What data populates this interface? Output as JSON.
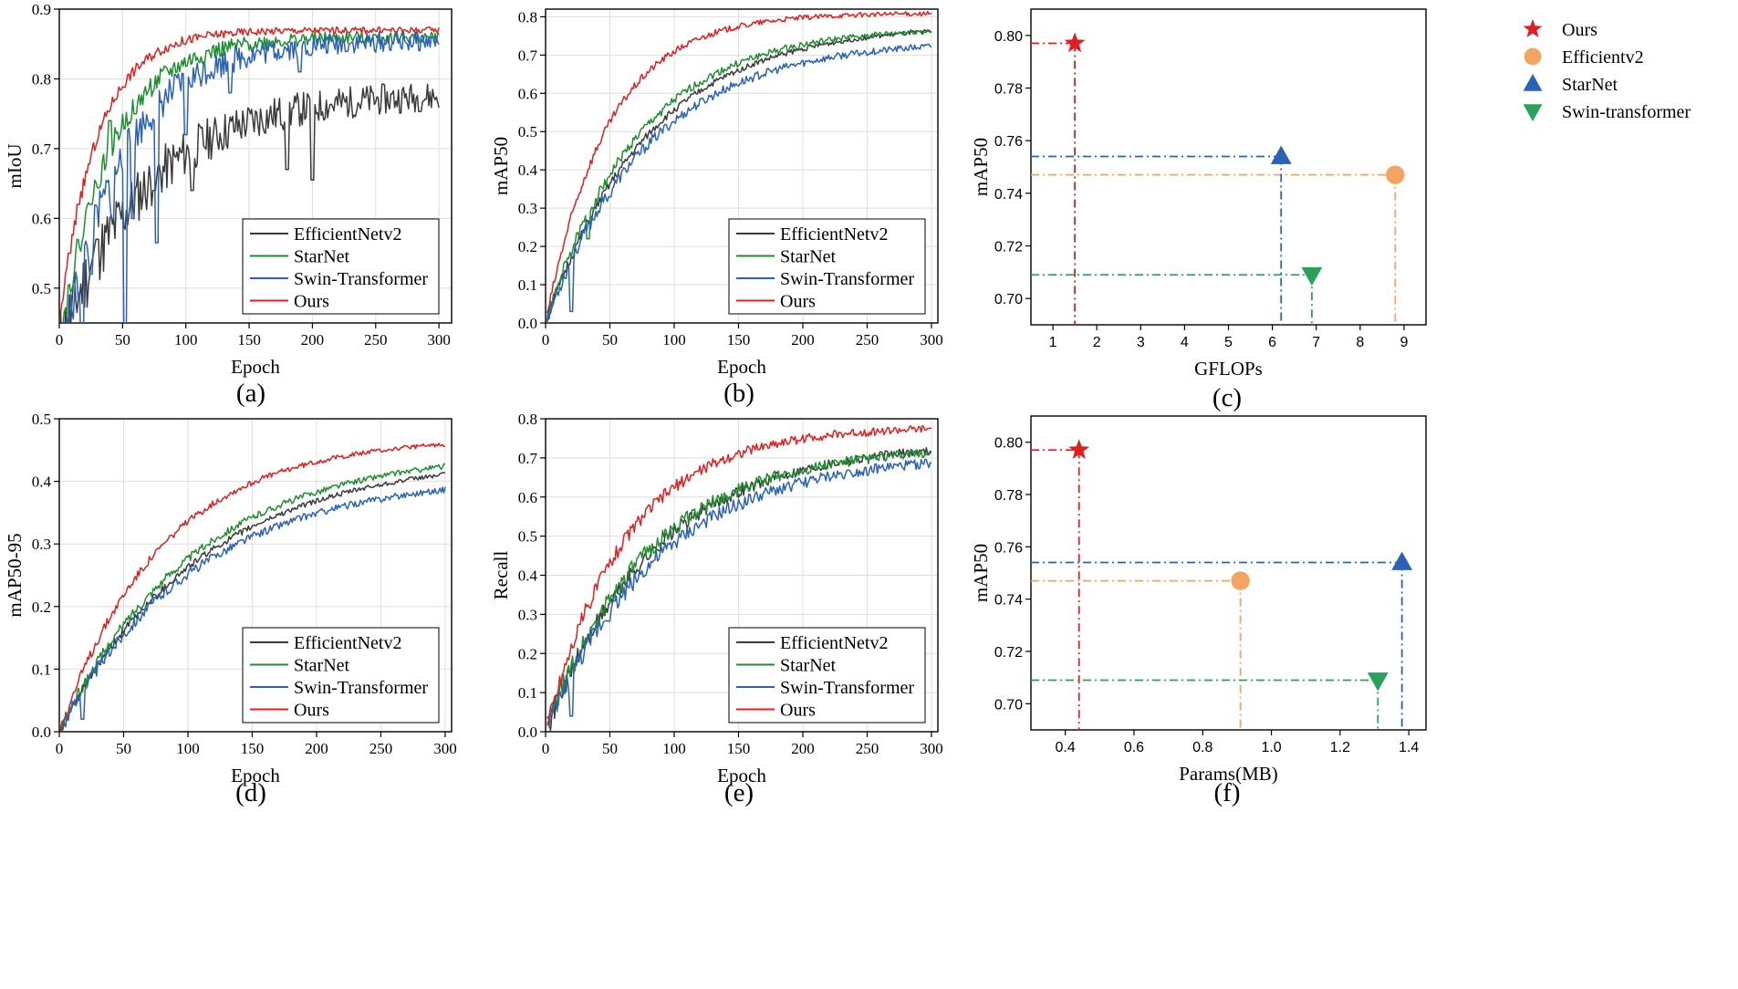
{
  "figure": {
    "panel_labels": [
      "(a)",
      "(b)",
      "(c)",
      "(d)",
      "(e)",
      "(f)"
    ]
  },
  "chart_data": [
    {
      "id": "a",
      "type": "line",
      "xlabel": "Epoch",
      "ylabel": "mIoU",
      "xlim": [
        0,
        310
      ],
      "ylim": [
        0.45,
        0.9
      ],
      "xticks": [
        0,
        50,
        100,
        150,
        200,
        250,
        300
      ],
      "yticks": [
        0.5,
        0.6,
        0.7,
        0.8,
        0.9
      ],
      "ytick_labels": [
        "0.5",
        "0.6",
        "0.7",
        "0.8",
        "0.9"
      ],
      "grid": true,
      "legend_position": "lower-right",
      "series": [
        {
          "name": "EfficientNetv2",
          "color": "#3a3a3a",
          "start": 0.42,
          "end": 0.78,
          "tau": 70,
          "noise": 0.03,
          "dips": [
            [
              30,
              0.57
            ],
            [
              75,
              0.64
            ],
            [
              105,
              0.64
            ],
            [
              180,
              0.67
            ],
            [
              200,
              0.655
            ]
          ],
          "seed": 11
        },
        {
          "name": "StarNet",
          "color": "#1e8f2e",
          "start": 0.42,
          "end": 0.86,
          "tau": 40,
          "noise": 0.012,
          "dips": [
            [
              25,
              0.62
            ],
            [
              40,
              0.74
            ],
            [
              60,
              0.75
            ]
          ],
          "seed": 22
        },
        {
          "name": "Swin-Transformer",
          "color": "#2a62b8",
          "start": 0.38,
          "end": 0.855,
          "tau": 48,
          "noise": 0.02,
          "dips": [
            [
              18,
              0.42
            ],
            [
              25,
              0.52
            ],
            [
              42,
              0.6
            ],
            [
              52,
              0.45
            ],
            [
              58,
              0.6
            ],
            [
              77,
              0.565
            ],
            [
              100,
              0.72
            ],
            [
              135,
              0.78
            ],
            [
              190,
              0.81
            ]
          ],
          "seed": 33
        },
        {
          "name": "Ours",
          "color": "#e02020",
          "start": 0.45,
          "end": 0.87,
          "tau": 30,
          "noise": 0.006,
          "dips": [
            [
              8,
              0.55
            ],
            [
              15,
              0.62
            ]
          ],
          "seed": 44
        }
      ]
    },
    {
      "id": "b",
      "type": "line",
      "xlabel": "Epoch",
      "ylabel": "mAP50",
      "xlim": [
        0,
        305
      ],
      "ylim": [
        0,
        0.82
      ],
      "xticks": [
        0,
        50,
        100,
        150,
        200,
        250,
        300
      ],
      "yticks": [
        0.0,
        0.1,
        0.2,
        0.3,
        0.4,
        0.5,
        0.6,
        0.7,
        0.8
      ],
      "ytick_labels": [
        "0.0",
        "0.1",
        "0.2",
        "0.3",
        "0.4",
        "0.5",
        "0.6",
        "0.7",
        "0.8"
      ],
      "grid": true,
      "legend_position": "lower-right",
      "series": [
        {
          "name": "EfficientNetv2",
          "color": "#3a3a3a",
          "start": 0.0,
          "end": 0.78,
          "tau": 80,
          "noise": 0.008,
          "dips": [],
          "seed": 51
        },
        {
          "name": "StarNet",
          "color": "#1e8f2e",
          "start": 0.0,
          "end": 0.775,
          "tau": 72,
          "noise": 0.01,
          "dips": [
            [
              33,
              0.22
            ]
          ],
          "seed": 52
        },
        {
          "name": "Swin-Transformer",
          "color": "#2a62b8",
          "start": 0.0,
          "end": 0.74,
          "tau": 80,
          "noise": 0.012,
          "dips": [
            [
              20,
              0.03
            ],
            [
              50,
              0.33
            ]
          ],
          "seed": 53
        },
        {
          "name": "Ours",
          "color": "#e02020",
          "start": 0.0,
          "end": 0.81,
          "tau": 48,
          "noise": 0.008,
          "dips": [],
          "seed": 54
        }
      ]
    },
    {
      "id": "c",
      "type": "scatter",
      "xlabel": "GFLOPs",
      "ylabel": "mAP50",
      "xlim": [
        0.5,
        9.5
      ],
      "ylim": [
        0.69,
        0.81
      ],
      "xticks": [
        1,
        2,
        3,
        4,
        5,
        6,
        7,
        8,
        9
      ],
      "yticks": [
        0.7,
        0.72,
        0.74,
        0.76,
        0.78,
        0.8
      ],
      "ytick_labels": [
        "0.70",
        "0.72",
        "0.74",
        "0.76",
        "0.78",
        "0.80"
      ],
      "legend_position": "top-right",
      "points": [
        {
          "name": "Ours",
          "x": 1.5,
          "y": 0.797,
          "color": "#e02020",
          "marker": "star"
        },
        {
          "name": "Efficientv2",
          "x": 8.8,
          "y": 0.747,
          "color": "#f4a460",
          "marker": "circle"
        },
        {
          "name": "StarNet",
          "x": 6.2,
          "y": 0.754,
          "color": "#2a62b8",
          "marker": "triangle-up"
        },
        {
          "name": "Swin-transformer",
          "x": 6.9,
          "y": 0.709,
          "color": "#2aa35a",
          "marker": "triangle-down"
        }
      ]
    },
    {
      "id": "d",
      "type": "line",
      "xlabel": "Epoch",
      "ylabel": "mAP50-95",
      "xlim": [
        0,
        305
      ],
      "ylim": [
        0,
        0.5
      ],
      "xticks": [
        0,
        50,
        100,
        150,
        200,
        250,
        300
      ],
      "yticks": [
        0.0,
        0.1,
        0.2,
        0.3,
        0.4,
        0.5
      ],
      "ytick_labels": [
        "0.0",
        "0.1",
        "0.2",
        "0.3",
        "0.4",
        "0.5"
      ],
      "grid": true,
      "legend_position": "lower-right",
      "series": [
        {
          "name": "EfficientNetv2",
          "color": "#3a3a3a",
          "start": 0.0,
          "end": 0.44,
          "tau": 110,
          "noise": 0.005,
          "dips": [],
          "seed": 61
        },
        {
          "name": "StarNet",
          "color": "#1e8f2e",
          "start": 0.0,
          "end": 0.45,
          "tau": 105,
          "noise": 0.006,
          "dips": [],
          "seed": 62
        },
        {
          "name": "Swin-Transformer",
          "color": "#2a62b8",
          "start": 0.0,
          "end": 0.41,
          "tau": 105,
          "noise": 0.007,
          "dips": [
            [
              18,
              0.02
            ]
          ],
          "seed": 63
        },
        {
          "name": "Ours",
          "color": "#e02020",
          "start": 0.0,
          "end": 0.47,
          "tau": 80,
          "noise": 0.005,
          "dips": [],
          "seed": 64
        }
      ]
    },
    {
      "id": "e",
      "type": "line",
      "xlabel": "Epoch",
      "ylabel": "Recall",
      "xlim": [
        0,
        305
      ],
      "ylim": [
        0,
        0.8
      ],
      "xticks": [
        0,
        50,
        100,
        150,
        200,
        250,
        300
      ],
      "yticks": [
        0.0,
        0.1,
        0.2,
        0.3,
        0.4,
        0.5,
        0.6,
        0.7,
        0.8
      ],
      "ytick_labels": [
        "0.0",
        "0.1",
        "0.2",
        "0.3",
        "0.4",
        "0.5",
        "0.6",
        "0.7",
        "0.8"
      ],
      "grid": true,
      "legend_position": "lower-right",
      "series": [
        {
          "name": "EfficientNetv2",
          "color": "#3a3a3a",
          "start": 0.0,
          "end": 0.74,
          "tau": 85,
          "noise": 0.016,
          "dips": [],
          "seed": 71
        },
        {
          "name": "StarNet",
          "color": "#1e8f2e",
          "start": 0.0,
          "end": 0.73,
          "tau": 80,
          "noise": 0.018,
          "dips": [
            [
              33,
              0.24
            ]
          ],
          "seed": 72
        },
        {
          "name": "Swin-Transformer",
          "color": "#2a62b8",
          "start": 0.0,
          "end": 0.71,
          "tau": 88,
          "noise": 0.018,
          "dips": [
            [
              20,
              0.04
            ]
          ],
          "seed": 73
        },
        {
          "name": "Ours",
          "color": "#e02020",
          "start": 0.0,
          "end": 0.78,
          "tau": 62,
          "noise": 0.014,
          "dips": [],
          "seed": 74
        }
      ]
    },
    {
      "id": "f",
      "type": "scatter",
      "xlabel": "Params(MB)",
      "ylabel": "mAP50",
      "xlim": [
        0.3,
        1.45
      ],
      "ylim": [
        0.69,
        0.81
      ],
      "xticks": [
        0.4,
        0.6,
        0.8,
        1.0,
        1.2,
        1.4
      ],
      "xtick_labels": [
        "0.4",
        "0.6",
        "0.8",
        "1.0",
        "1.2",
        "1.4"
      ],
      "yticks": [
        0.7,
        0.72,
        0.74,
        0.76,
        0.78,
        0.8
      ],
      "ytick_labels": [
        "0.70",
        "0.72",
        "0.74",
        "0.76",
        "0.78",
        "0.80"
      ],
      "points": [
        {
          "name": "Ours",
          "x": 0.44,
          "y": 0.797,
          "color": "#e02020",
          "marker": "star"
        },
        {
          "name": "Efficientv2",
          "x": 0.91,
          "y": 0.747,
          "color": "#f4a460",
          "marker": "circle"
        },
        {
          "name": "StarNet",
          "x": 1.38,
          "y": 0.754,
          "color": "#2a62b8",
          "marker": "triangle-up"
        },
        {
          "name": "Swin-transformer",
          "x": 1.31,
          "y": 0.709,
          "color": "#2aa35a",
          "marker": "triangle-down"
        }
      ]
    }
  ]
}
